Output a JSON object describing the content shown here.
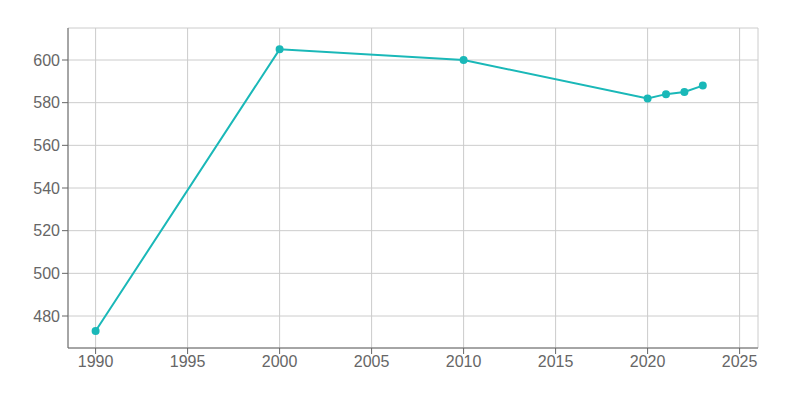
{
  "chart_data": {
    "type": "line",
    "x": [
      1990,
      2000,
      2010,
      2020,
      2021,
      2022,
      2023
    ],
    "values": [
      473,
      605,
      600,
      582,
      584,
      585,
      588
    ],
    "color": "#1ab8b8",
    "marker": "circle",
    "xlim": [
      1988.5,
      2026
    ],
    "xticks": [
      1990,
      1995,
      2000,
      2005,
      2010,
      2015,
      2020,
      2025
    ],
    "ylim": [
      465,
      615
    ],
    "yticks": [
      480,
      500,
      520,
      540,
      560,
      580,
      600
    ],
    "grid": true
  }
}
